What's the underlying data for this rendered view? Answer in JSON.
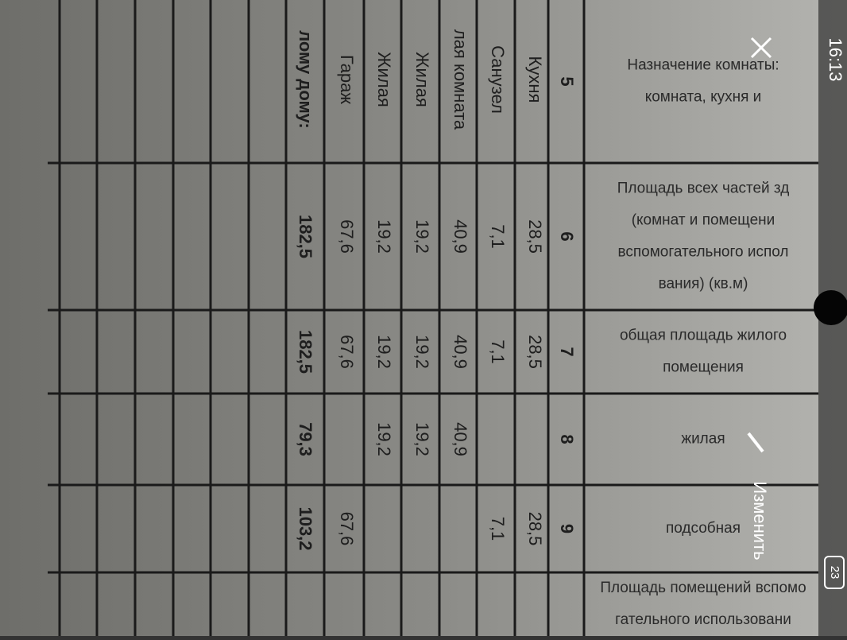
{
  "status_bar": {
    "time": "16:13",
    "battery": "23"
  },
  "toolbar": {
    "edit": "Изменить"
  },
  "table": {
    "headers": [
      {
        "lines": [
          "Назначение комнаты:",
          "комната, кухня и"
        ]
      },
      {
        "lines": [
          "Площадь всех частей зд",
          "(комнат и помещени",
          "вспомогательного испол",
          "вания) (кв.м)"
        ]
      },
      {
        "lines": [
          "общая площадь жилого",
          "помещения"
        ]
      },
      {
        "lines": [
          "жилая"
        ]
      },
      {
        "lines": [
          "подсобная"
        ]
      },
      {
        "lines": [
          "Площадь помещений вспомо",
          "гательного использовани"
        ]
      }
    ],
    "column_numbers": [
      "5",
      "6",
      "7",
      "8",
      "9"
    ],
    "rows": [
      {
        "name": "Кухня",
        "area": "28,5",
        "total": "28,5",
        "auxiliary": "28,5"
      },
      {
        "name": "Санузел",
        "area": "7,1",
        "total": "7,1",
        "auxiliary": "7,1"
      },
      {
        "name": "лая комната",
        "area": "40,9",
        "total": "40,9",
        "living": "40,9"
      },
      {
        "name": "Жилая",
        "area": "19,2",
        "total": "19,2",
        "living": "19,2"
      },
      {
        "name": "Жилая",
        "area": "19,2",
        "total": "19,2",
        "living": "19,2"
      },
      {
        "name": "Гараж",
        "area": "67,6",
        "total": "67,6",
        "auxiliary": "67,6"
      },
      {
        "name": "лому дому:",
        "area": "182,5",
        "total": "182,5",
        "living": "79,3",
        "auxiliary": "103,2"
      }
    ]
  }
}
